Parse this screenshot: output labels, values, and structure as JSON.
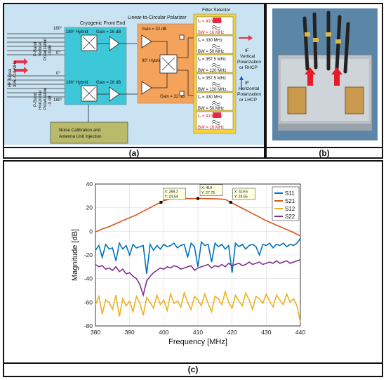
{
  "panel_a": {
    "caption": "(a)",
    "rf_signal": "RF Signal",
    "rf_band": "305–410 MHz",
    "v_label_1": "P-Band",
    "v_label_2": "Vertical",
    "v_label_3": "Polarization",
    "v_label_4": "−3 dB",
    "h_label_1": "P-Band",
    "h_label_2": "Horizontal",
    "h_label_3": "Polarization",
    "h_label_4": "−3 dB",
    "phase_180_top": "180°",
    "phase_0_top": "0°",
    "phase_0_bot": "0°",
    "phase_180_bot": "180°",
    "cryo_title": "Cryogenic Front End",
    "hybrid_top": "180° Hybrid",
    "gain_top": "Gain = 26 dB",
    "hybrid_bot": "180° Hybrid",
    "gain_bot": "Gain = 26 dB",
    "polarizer_title": "Linear-to-Circular Polarizer",
    "pol_gain_top": "Gain = 32 dB",
    "pol_hybrid": "90° Hybrid",
    "pol_gain_bot": "Gain = 32 dB",
    "filter_title": "Filter Selector",
    "filters": [
      {
        "fc": "f₀ = 410 MHz",
        "bw": "BW = 16 MHz",
        "highlight": true
      },
      {
        "fc": "f₀ = 330 MHz",
        "bw": "BW = 50 MHz",
        "highlight": false
      },
      {
        "fc": "f₀ = 357.5 MHz",
        "bw": "BW = 120 MHz",
        "highlight": false
      },
      {
        "fc": "f₀ = 357.5 MHz",
        "bw": "BW = 120 MHz",
        "highlight": false
      },
      {
        "fc": "f₀ = 330 MHz",
        "bw": "BW = 50 MHz",
        "highlight": false
      },
      {
        "fc": "f₀ = 410 MHz",
        "bw": "BW = 16 MHz",
        "highlight": true
      }
    ],
    "out_top_1": "IF",
    "out_top_2": "Vertical",
    "out_top_3": "Polarization",
    "out_top_4": "or RHCP",
    "out_bot_1": "IF",
    "out_bot_2": "Horizontal",
    "out_bot_3": "Polarization",
    "out_bot_4": "or LHCP",
    "noise_1": "Noise Calibration and",
    "noise_2": "Antenna Unit Injection",
    "colors": {
      "cryo": "#3cc8d8",
      "polarizer": "#f5a25a",
      "filter": "#f4d43a",
      "noise": "#b9ba6a",
      "panel_bg": "#c9e3f2",
      "arrow_red": "#e8334a",
      "arrow_blue": "#2255cc"
    }
  },
  "panel_b": {
    "caption": "(b)"
  },
  "panel_c": {
    "caption": "(c)",
    "chart_data": {
      "type": "line",
      "xlabel": "Frequency [MHz]",
      "ylabel": "Magnitude [dB]",
      "xlim": [
        380,
        440
      ],
      "ylim": [
        -80,
        40
      ],
      "xticks": [
        380,
        390,
        400,
        410,
        420,
        430,
        440
      ],
      "yticks": [
        -80,
        -60,
        -40,
        -20,
        0,
        20,
        40
      ],
      "grid": true,
      "legend_position": "top-right",
      "series": [
        {
          "name": "S11",
          "color": "#0072bd",
          "x": [
            380,
            381,
            382,
            383,
            384,
            385,
            386,
            387,
            388,
            389,
            390,
            391,
            392,
            393,
            394,
            395,
            396,
            397,
            398,
            399,
            400,
            401,
            402,
            403,
            404,
            405,
            406,
            407,
            408,
            409,
            410,
            411,
            412,
            413,
            414,
            415,
            416,
            417,
            418,
            419,
            420,
            421,
            422,
            423,
            424,
            425,
            426,
            427,
            428,
            429,
            430,
            431,
            432,
            433,
            434,
            435,
            436,
            437,
            438,
            439,
            440
          ],
          "y": [
            -16,
            -12,
            -22,
            -11,
            -15,
            -14,
            -25,
            -10,
            -15,
            -12,
            -20,
            -11,
            -14,
            -13,
            -12,
            -36,
            -11,
            -16,
            -12,
            -15,
            -11,
            -13,
            -12,
            -10,
            -14,
            -12,
            -11,
            -22,
            -10,
            -13,
            -30,
            -9,
            -12,
            -11,
            -26,
            -10,
            -13,
            -11,
            -15,
            -12,
            -35,
            -10,
            -13,
            -11,
            -15,
            -12,
            -11,
            -13,
            -20,
            -11,
            -12,
            -10,
            -14,
            -11,
            -12,
            -10,
            -13,
            -11,
            -12,
            -10,
            -6
          ]
        },
        {
          "name": "S21",
          "color": "#d95319",
          "x": [
            380,
            382,
            384,
            386,
            388,
            390,
            392,
            394,
            396,
            398,
            399.2,
            400,
            402,
            404,
            406,
            408,
            410,
            412,
            414,
            416,
            418,
            419.6,
            420,
            422,
            424,
            426,
            428,
            430,
            432,
            434,
            436,
            438,
            440
          ],
          "y": [
            -0.5,
            2,
            4,
            6.5,
            9,
            11.5,
            14,
            17,
            20,
            23,
            24.54,
            26,
            27.3,
            27.6,
            27.7,
            27.7,
            27.75,
            27.7,
            27.6,
            27.4,
            27,
            24.55,
            24,
            21,
            18,
            15,
            12,
            9,
            6.5,
            4,
            1.5,
            -1,
            -4
          ]
        },
        {
          "name": "S12",
          "color": "#edb120",
          "x": [
            380,
            381,
            382,
            383,
            384,
            385,
            386,
            387,
            388,
            389,
            390,
            391,
            392,
            393,
            394,
            395,
            396,
            397,
            398,
            399,
            400,
            401,
            402,
            403,
            404,
            405,
            406,
            407,
            408,
            409,
            410,
            411,
            412,
            413,
            414,
            415,
            416,
            417,
            418,
            419,
            420,
            421,
            422,
            423,
            424,
            425,
            426,
            427,
            428,
            429,
            430,
            431,
            432,
            433,
            434,
            435,
            436,
            437,
            438,
            439,
            440
          ],
          "y": [
            -62,
            -55,
            -70,
            -58,
            -60,
            -66,
            -54,
            -72,
            -57,
            -63,
            -59,
            -68,
            -55,
            -61,
            -71,
            -56,
            -60,
            -65,
            -54,
            -62,
            -58,
            -67,
            -53,
            -61,
            -59,
            -64,
            -52,
            -60,
            -66,
            -55,
            -58,
            -63,
            -53,
            -61,
            -68,
            -55,
            -57,
            -62,
            -51,
            -60,
            -65,
            -54,
            -59,
            -63,
            -52,
            -58,
            -66,
            -55,
            -57,
            -61,
            -53,
            -59,
            -64,
            -54,
            -58,
            -62,
            -53,
            -60,
            -57,
            -63,
            -77
          ]
        },
        {
          "name": "S22",
          "color": "#7e2f8e",
          "x": [
            380,
            381,
            382,
            383,
            384,
            385,
            386,
            387,
            388,
            389,
            390,
            391,
            392,
            393,
            394,
            395,
            396,
            397,
            398,
            399,
            400,
            401,
            402,
            403,
            404,
            405,
            406,
            407,
            408,
            409,
            410,
            411,
            412,
            413,
            414,
            415,
            416,
            417,
            418,
            419,
            420,
            421,
            422,
            423,
            424,
            425,
            426,
            427,
            428,
            429,
            430,
            431,
            432,
            433,
            434,
            435,
            436,
            437,
            438,
            439,
            440
          ],
          "y": [
            -28,
            -30,
            -29,
            -32,
            -31,
            -33,
            -30,
            -34,
            -32,
            -36,
            -35,
            -38,
            -40,
            -45,
            -54,
            -42,
            -38,
            -35,
            -33,
            -31,
            -32,
            -30,
            -31,
            -29,
            -30,
            -32,
            -31,
            -30,
            -29,
            -33,
            -31,
            -30,
            -29,
            -28,
            -31,
            -29,
            -30,
            -28,
            -30,
            -27,
            -29,
            -28,
            -27,
            -29,
            -28,
            -26,
            -28,
            -27,
            -26,
            -28,
            -27,
            -26,
            -27,
            -25,
            -27,
            -26,
            -25,
            -27,
            -26,
            -25,
            -24
          ]
        }
      ],
      "annotations": [
        {
          "x": 399.2,
          "y": 24.54,
          "line1": "X: 399.2",
          "line2": "Y: 24.54"
        },
        {
          "x": 410,
          "y": 27.75,
          "line1": "X: 410",
          "line2": "Y: 27.75"
        },
        {
          "x": 419.6,
          "y": 24.55,
          "line1": "X: 419.6",
          "line2": "Y: 24.55"
        }
      ]
    }
  }
}
